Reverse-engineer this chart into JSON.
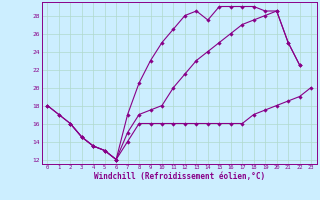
{
  "xlabel": "Windchill (Refroidissement éolien,°C)",
  "bg_color": "#cceeff",
  "grid_color": "#b0d9cc",
  "line_color": "#880088",
  "xlim": [
    -0.5,
    23.5
  ],
  "ylim": [
    11.5,
    29.5
  ],
  "yticks": [
    12,
    14,
    16,
    18,
    20,
    22,
    24,
    26,
    28
  ],
  "xticks": [
    0,
    1,
    2,
    3,
    4,
    5,
    6,
    7,
    8,
    9,
    10,
    11,
    12,
    13,
    14,
    15,
    16,
    17,
    18,
    19,
    20,
    21,
    22,
    23
  ],
  "line1_x": [
    0,
    1,
    2,
    3,
    4,
    5,
    6,
    7,
    8,
    9,
    10,
    11,
    12,
    13,
    14,
    15,
    16,
    17,
    18,
    19,
    20,
    21,
    22,
    23
  ],
  "line1_y": [
    18,
    17,
    16,
    14.5,
    13.5,
    13,
    12,
    14,
    16,
    16,
    16,
    16,
    16,
    16,
    16,
    16,
    16,
    16,
    17,
    17.5,
    18,
    18.5,
    19,
    20
  ],
  "line2_x": [
    0,
    1,
    2,
    3,
    4,
    5,
    6,
    7,
    8,
    9,
    10,
    11,
    12,
    13,
    14,
    15,
    16,
    17,
    18,
    19,
    20,
    21,
    22
  ],
  "line2_y": [
    18,
    17,
    16,
    14.5,
    13.5,
    13,
    12,
    17,
    20.5,
    23,
    25,
    26.5,
    28,
    28.5,
    27.5,
    29,
    29,
    29,
    29,
    28.5,
    28.5,
    25,
    22.5
  ],
  "line3_x": [
    2,
    3,
    4,
    5,
    6,
    7,
    8,
    9,
    10,
    11,
    12,
    13,
    14,
    15,
    16,
    17,
    18,
    19,
    20,
    21,
    22
  ],
  "line3_y": [
    16,
    14.5,
    13.5,
    13,
    12,
    15,
    17,
    17.5,
    18,
    20,
    21.5,
    23,
    24,
    25,
    26,
    27,
    27.5,
    28,
    28.5,
    25,
    22.5
  ]
}
